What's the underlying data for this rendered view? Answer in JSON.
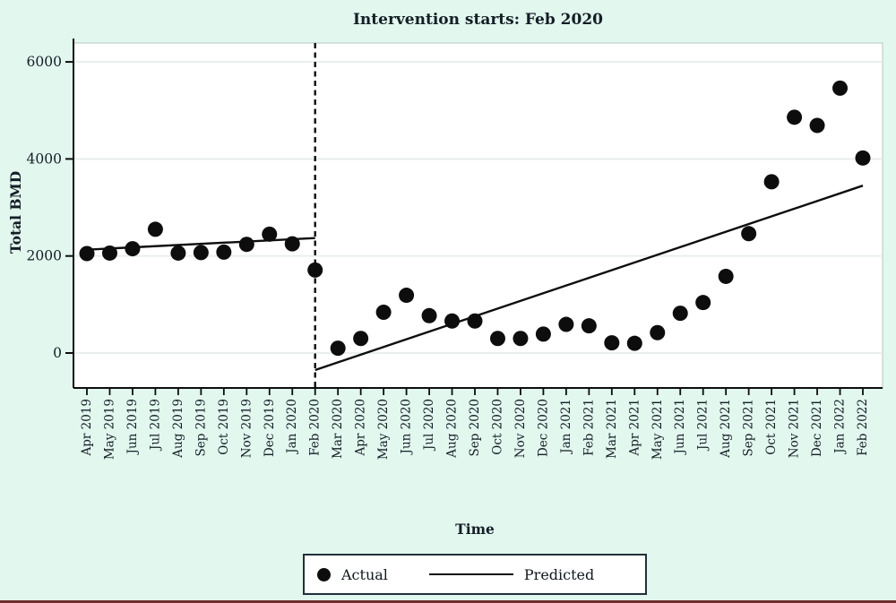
{
  "chart_data": {
    "type": "scatter",
    "title": "Intervention starts: Feb 2020",
    "xlabel": "Time",
    "ylabel": "Total BMD",
    "y_ticks": [
      0,
      2000,
      4000,
      6000
    ],
    "ylim": [
      -720,
      6330
    ],
    "grid": "horizontal-light",
    "intervention_month": "Feb 2020",
    "months": [
      "Apr 2019",
      "May 2019",
      "Jun 2019",
      "Jul 2019",
      "Aug 2019",
      "Sep 2019",
      "Oct 2019",
      "Nov 2019",
      "Dec 2019",
      "Jan 2020",
      "Feb 2020",
      "Mar 2020",
      "Apr 2020",
      "May 2020",
      "Jun 2020",
      "Jul 2020",
      "Aug 2020",
      "Sep 2020",
      "Oct 2020",
      "Nov 2020",
      "Dec 2020",
      "Jan 2021",
      "Feb 2021",
      "Mar 2021",
      "Apr 2021",
      "May 2021",
      "Jun 2021",
      "Jul 2021",
      "Aug 2021",
      "Sep 2021",
      "Oct 2021",
      "Nov 2021",
      "Dec 2021",
      "Jan 2022",
      "Feb 2022"
    ],
    "series": [
      {
        "name": "Actual",
        "style": "points",
        "values": [
          2050,
          2060,
          2150,
          2550,
          2060,
          2070,
          2080,
          2240,
          2450,
          2250,
          1710,
          100,
          300,
          840,
          1190,
          770,
          660,
          660,
          300,
          300,
          390,
          590,
          560,
          210,
          200,
          420,
          820,
          1040,
          1580,
          2460,
          3530,
          4860,
          4690,
          5460,
          4020
        ]
      }
    ],
    "predicted_pre": {
      "from_month": "Apr 2019",
      "from_value": 2130,
      "to_month": "Feb 2020",
      "to_value": 2370
    },
    "predicted_post": {
      "from_month": "Feb 2020",
      "from_value": -350,
      "to_month": "Feb 2022",
      "to_value": 3450
    },
    "legend": [
      {
        "marker": "circle",
        "label": "Actual"
      },
      {
        "marker": "line",
        "label": "Predicted"
      }
    ],
    "legend_position": "bottom-center",
    "colors": {
      "background": "#e2f7ee",
      "plot_background": "#ffffff",
      "ink": "#0d0d0d",
      "text": "#141e26",
      "gridline": "#e4ece9",
      "bottom_rule": "#702f2d"
    }
  }
}
